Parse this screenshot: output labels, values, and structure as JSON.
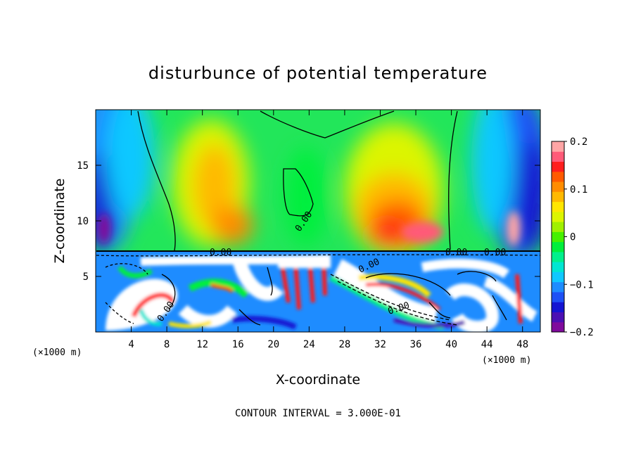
{
  "chart_data": {
    "type": "heatmap",
    "title": "disturbunce of potential temperature",
    "xlabel": "X-coordinate",
    "ylabel": "Z-coordinate",
    "x_unit": "(×1000 m)",
    "x_unit_right": "(×1000 m)",
    "xlim": [
      0,
      50
    ],
    "ylim": [
      0,
      20
    ],
    "x_ticks": [
      4,
      8,
      12,
      16,
      20,
      24,
      28,
      32,
      36,
      40,
      44,
      48
    ],
    "y_ticks": [
      5,
      10,
      15
    ],
    "colorbar": {
      "ticks": [
        0.2,
        0.1,
        0,
        -0.1,
        -0.2
      ],
      "tick_labels": [
        "0.2",
        "0.1",
        "0",
        "−0.1",
        "−0.2"
      ],
      "range": [
        -0.2,
        0.2
      ],
      "colors": [
        "#7f0a9c",
        "#4b0fb3",
        "#1414d2",
        "#1e50f5",
        "#1e8cff",
        "#10c8ff",
        "#00e6d2",
        "#00f08c",
        "#00ef3c",
        "#46f000",
        "#a0f000",
        "#dcf500",
        "#ffe600",
        "#ffb900",
        "#ff8c00",
        "#ff5a00",
        "#ff1e1e",
        "#ff5a78",
        "#ffa5a5"
      ]
    },
    "contour_labels": [
      "0.00",
      "0.00",
      "0.00",
      "0.00",
      "0.00",
      "0.00",
      "0.00"
    ],
    "contour_interval_text": "CONTOUR INTERVAL = 3.000E-01"
  }
}
